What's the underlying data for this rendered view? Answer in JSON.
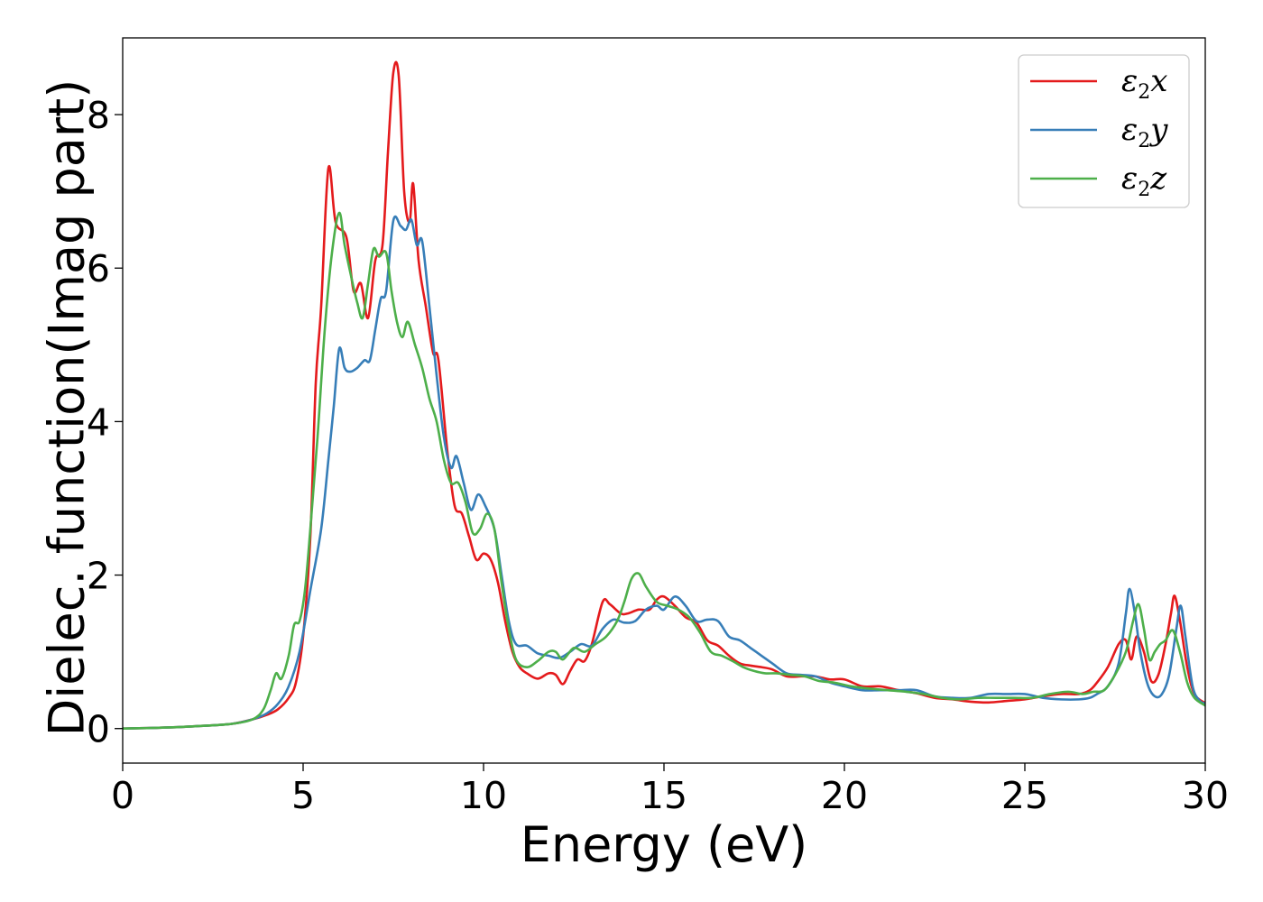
{
  "chart_data": {
    "type": "line",
    "title": "",
    "xlabel": "Energy (eV)",
    "ylabel": "Dielec. function(Imag part)",
    "xlim": [
      0,
      30
    ],
    "ylim": [
      -0.45,
      9.0
    ],
    "xticks": [
      0,
      5,
      10,
      15,
      20,
      25,
      30
    ],
    "yticks": [
      0,
      2,
      4,
      6,
      8
    ],
    "grid": false,
    "legend_position": "top-right",
    "series": [
      {
        "name": "ε2x",
        "symbol": "ε",
        "subscript": "2",
        "suffix": "x",
        "color": "#e41a1c",
        "points": [
          [
            0,
            0.0
          ],
          [
            1,
            0.01
          ],
          [
            2,
            0.03
          ],
          [
            3,
            0.06
          ],
          [
            3.6,
            0.12
          ],
          [
            4.0,
            0.18
          ],
          [
            4.3,
            0.25
          ],
          [
            4.6,
            0.4
          ],
          [
            4.8,
            0.6
          ],
          [
            5.0,
            1.2
          ],
          [
            5.2,
            2.5
          ],
          [
            5.35,
            4.5
          ],
          [
            5.5,
            5.5
          ],
          [
            5.7,
            7.3
          ],
          [
            5.9,
            6.6
          ],
          [
            6.2,
            6.4
          ],
          [
            6.4,
            5.7
          ],
          [
            6.6,
            5.8
          ],
          [
            6.8,
            5.35
          ],
          [
            7.0,
            6.1
          ],
          [
            7.2,
            6.3
          ],
          [
            7.35,
            7.5
          ],
          [
            7.5,
            8.55
          ],
          [
            7.65,
            8.5
          ],
          [
            7.8,
            7.0
          ],
          [
            7.95,
            6.6
          ],
          [
            8.05,
            7.1
          ],
          [
            8.2,
            6.1
          ],
          [
            8.4,
            5.5
          ],
          [
            8.6,
            4.9
          ],
          [
            8.75,
            4.8
          ],
          [
            9.0,
            3.6
          ],
          [
            9.2,
            2.9
          ],
          [
            9.4,
            2.8
          ],
          [
            9.6,
            2.5
          ],
          [
            9.8,
            2.2
          ],
          [
            10.0,
            2.28
          ],
          [
            10.2,
            2.2
          ],
          [
            10.4,
            1.9
          ],
          [
            10.6,
            1.4
          ],
          [
            10.8,
            1.0
          ],
          [
            11.0,
            0.8
          ],
          [
            11.2,
            0.72
          ],
          [
            11.5,
            0.65
          ],
          [
            11.8,
            0.72
          ],
          [
            12.0,
            0.7
          ],
          [
            12.2,
            0.58
          ],
          [
            12.4,
            0.75
          ],
          [
            12.6,
            0.9
          ],
          [
            12.8,
            0.88
          ],
          [
            13.0,
            1.1
          ],
          [
            13.3,
            1.65
          ],
          [
            13.5,
            1.62
          ],
          [
            13.8,
            1.5
          ],
          [
            14.0,
            1.5
          ],
          [
            14.3,
            1.55
          ],
          [
            14.6,
            1.55
          ],
          [
            14.8,
            1.68
          ],
          [
            15.0,
            1.72
          ],
          [
            15.3,
            1.6
          ],
          [
            15.6,
            1.45
          ],
          [
            15.9,
            1.38
          ],
          [
            16.2,
            1.15
          ],
          [
            16.5,
            1.08
          ],
          [
            16.8,
            0.95
          ],
          [
            17.1,
            0.85
          ],
          [
            17.4,
            0.82
          ],
          [
            17.7,
            0.8
          ],
          [
            18.0,
            0.77
          ],
          [
            18.4,
            0.68
          ],
          [
            18.8,
            0.68
          ],
          [
            19.2,
            0.68
          ],
          [
            19.6,
            0.64
          ],
          [
            20.0,
            0.64
          ],
          [
            20.5,
            0.55
          ],
          [
            21.0,
            0.55
          ],
          [
            21.5,
            0.5
          ],
          [
            22.0,
            0.46
          ],
          [
            22.5,
            0.4
          ],
          [
            23.0,
            0.38
          ],
          [
            23.5,
            0.35
          ],
          [
            24.0,
            0.34
          ],
          [
            24.5,
            0.36
          ],
          [
            25.0,
            0.38
          ],
          [
            25.5,
            0.42
          ],
          [
            26.0,
            0.45
          ],
          [
            26.5,
            0.45
          ],
          [
            26.8,
            0.5
          ],
          [
            27.0,
            0.6
          ],
          [
            27.3,
            0.8
          ],
          [
            27.6,
            1.1
          ],
          [
            27.8,
            1.15
          ],
          [
            27.95,
            0.9
          ],
          [
            28.1,
            1.2
          ],
          [
            28.3,
            1.0
          ],
          [
            28.5,
            0.62
          ],
          [
            28.7,
            0.7
          ],
          [
            28.9,
            1.1
          ],
          [
            29.05,
            1.5
          ],
          [
            29.15,
            1.73
          ],
          [
            29.3,
            1.4
          ],
          [
            29.5,
            0.8
          ],
          [
            29.7,
            0.45
          ],
          [
            30.0,
            0.33
          ]
        ]
      },
      {
        "name": "ε2y",
        "symbol": "ε",
        "subscript": "2",
        "suffix": "y",
        "color": "#377eb8",
        "points": [
          [
            0,
            0.0
          ],
          [
            1,
            0.01
          ],
          [
            2,
            0.03
          ],
          [
            3,
            0.06
          ],
          [
            3.6,
            0.12
          ],
          [
            4.0,
            0.2
          ],
          [
            4.3,
            0.32
          ],
          [
            4.6,
            0.55
          ],
          [
            4.9,
            1.0
          ],
          [
            5.2,
            1.8
          ],
          [
            5.5,
            2.6
          ],
          [
            5.7,
            3.5
          ],
          [
            5.85,
            4.2
          ],
          [
            6.0,
            4.95
          ],
          [
            6.15,
            4.7
          ],
          [
            6.3,
            4.65
          ],
          [
            6.5,
            4.7
          ],
          [
            6.7,
            4.8
          ],
          [
            6.85,
            4.8
          ],
          [
            7.0,
            5.2
          ],
          [
            7.15,
            5.6
          ],
          [
            7.3,
            5.7
          ],
          [
            7.5,
            6.62
          ],
          [
            7.7,
            6.55
          ],
          [
            7.85,
            6.5
          ],
          [
            8.0,
            6.63
          ],
          [
            8.15,
            6.3
          ],
          [
            8.3,
            6.35
          ],
          [
            8.5,
            5.5
          ],
          [
            8.7,
            4.6
          ],
          [
            8.9,
            3.8
          ],
          [
            9.1,
            3.4
          ],
          [
            9.25,
            3.55
          ],
          [
            9.45,
            3.2
          ],
          [
            9.65,
            2.85
          ],
          [
            9.85,
            3.05
          ],
          [
            10.05,
            2.9
          ],
          [
            10.3,
            2.6
          ],
          [
            10.5,
            2.0
          ],
          [
            10.7,
            1.4
          ],
          [
            10.9,
            1.1
          ],
          [
            11.2,
            1.08
          ],
          [
            11.5,
            0.98
          ],
          [
            11.8,
            0.95
          ],
          [
            12.1,
            0.92
          ],
          [
            12.4,
            1.0
          ],
          [
            12.7,
            1.1
          ],
          [
            13.0,
            1.08
          ],
          [
            13.3,
            1.3
          ],
          [
            13.6,
            1.42
          ],
          [
            13.9,
            1.38
          ],
          [
            14.2,
            1.4
          ],
          [
            14.5,
            1.55
          ],
          [
            14.8,
            1.6
          ],
          [
            15.0,
            1.55
          ],
          [
            15.3,
            1.72
          ],
          [
            15.6,
            1.6
          ],
          [
            15.9,
            1.4
          ],
          [
            16.2,
            1.42
          ],
          [
            16.5,
            1.4
          ],
          [
            16.8,
            1.2
          ],
          [
            17.1,
            1.15
          ],
          [
            17.4,
            1.05
          ],
          [
            17.7,
            0.95
          ],
          [
            18.0,
            0.85
          ],
          [
            18.4,
            0.72
          ],
          [
            18.8,
            0.7
          ],
          [
            19.2,
            0.68
          ],
          [
            19.6,
            0.6
          ],
          [
            20.0,
            0.55
          ],
          [
            20.5,
            0.5
          ],
          [
            21.0,
            0.5
          ],
          [
            21.5,
            0.5
          ],
          [
            22.0,
            0.5
          ],
          [
            22.5,
            0.42
          ],
          [
            23.0,
            0.4
          ],
          [
            23.5,
            0.4
          ],
          [
            24.0,
            0.45
          ],
          [
            24.5,
            0.45
          ],
          [
            25.0,
            0.45
          ],
          [
            25.5,
            0.4
          ],
          [
            26.0,
            0.38
          ],
          [
            26.5,
            0.38
          ],
          [
            26.8,
            0.4
          ],
          [
            27.0,
            0.45
          ],
          [
            27.3,
            0.55
          ],
          [
            27.6,
            0.85
          ],
          [
            27.8,
            1.5
          ],
          [
            27.9,
            1.82
          ],
          [
            28.05,
            1.5
          ],
          [
            28.2,
            1.0
          ],
          [
            28.4,
            0.58
          ],
          [
            28.6,
            0.42
          ],
          [
            28.8,
            0.45
          ],
          [
            29.0,
            0.7
          ],
          [
            29.2,
            1.3
          ],
          [
            29.32,
            1.6
          ],
          [
            29.45,
            1.2
          ],
          [
            29.65,
            0.55
          ],
          [
            29.85,
            0.36
          ],
          [
            30.0,
            0.33
          ]
        ]
      },
      {
        "name": "ε2z",
        "symbol": "ε",
        "subscript": "2",
        "suffix": "z",
        "color": "#4daf4a",
        "points": [
          [
            0,
            0.0
          ],
          [
            1,
            0.01
          ],
          [
            2,
            0.03
          ],
          [
            3,
            0.06
          ],
          [
            3.6,
            0.12
          ],
          [
            3.9,
            0.25
          ],
          [
            4.1,
            0.5
          ],
          [
            4.25,
            0.72
          ],
          [
            4.4,
            0.65
          ],
          [
            4.6,
            0.95
          ],
          [
            4.75,
            1.35
          ],
          [
            4.9,
            1.4
          ],
          [
            5.05,
            1.8
          ],
          [
            5.2,
            2.6
          ],
          [
            5.4,
            3.8
          ],
          [
            5.6,
            5.2
          ],
          [
            5.8,
            6.2
          ],
          [
            6.0,
            6.72
          ],
          [
            6.15,
            6.3
          ],
          [
            6.35,
            5.85
          ],
          [
            6.5,
            5.55
          ],
          [
            6.65,
            5.35
          ],
          [
            6.8,
            5.8
          ],
          [
            6.95,
            6.25
          ],
          [
            7.1,
            6.15
          ],
          [
            7.3,
            6.2
          ],
          [
            7.45,
            5.7
          ],
          [
            7.6,
            5.3
          ],
          [
            7.75,
            5.1
          ],
          [
            7.9,
            5.3
          ],
          [
            8.1,
            5.0
          ],
          [
            8.3,
            4.7
          ],
          [
            8.5,
            4.3
          ],
          [
            8.7,
            4.0
          ],
          [
            8.9,
            3.5
          ],
          [
            9.1,
            3.2
          ],
          [
            9.3,
            3.2
          ],
          [
            9.5,
            2.95
          ],
          [
            9.7,
            2.55
          ],
          [
            9.9,
            2.6
          ],
          [
            10.1,
            2.8
          ],
          [
            10.3,
            2.6
          ],
          [
            10.5,
            1.9
          ],
          [
            10.7,
            1.3
          ],
          [
            10.9,
            0.9
          ],
          [
            11.2,
            0.8
          ],
          [
            11.5,
            0.88
          ],
          [
            11.8,
            1.0
          ],
          [
            12.0,
            1.0
          ],
          [
            12.2,
            0.9
          ],
          [
            12.5,
            1.05
          ],
          [
            12.8,
            1.0
          ],
          [
            13.1,
            1.1
          ],
          [
            13.4,
            1.2
          ],
          [
            13.7,
            1.4
          ],
          [
            13.9,
            1.65
          ],
          [
            14.1,
            1.95
          ],
          [
            14.3,
            2.02
          ],
          [
            14.5,
            1.85
          ],
          [
            14.8,
            1.65
          ],
          [
            15.1,
            1.6
          ],
          [
            15.4,
            1.55
          ],
          [
            15.7,
            1.45
          ],
          [
            16.0,
            1.25
          ],
          [
            16.3,
            1.0
          ],
          [
            16.6,
            0.95
          ],
          [
            16.9,
            0.88
          ],
          [
            17.2,
            0.8
          ],
          [
            17.5,
            0.75
          ],
          [
            17.8,
            0.72
          ],
          [
            18.1,
            0.72
          ],
          [
            18.5,
            0.7
          ],
          [
            18.9,
            0.68
          ],
          [
            19.3,
            0.62
          ],
          [
            19.7,
            0.6
          ],
          [
            20.2,
            0.55
          ],
          [
            20.7,
            0.52
          ],
          [
            21.2,
            0.5
          ],
          [
            21.7,
            0.48
          ],
          [
            22.2,
            0.45
          ],
          [
            22.7,
            0.4
          ],
          [
            23.2,
            0.38
          ],
          [
            23.7,
            0.4
          ],
          [
            24.2,
            0.4
          ],
          [
            24.7,
            0.4
          ],
          [
            25.2,
            0.4
          ],
          [
            25.7,
            0.45
          ],
          [
            26.2,
            0.48
          ],
          [
            26.6,
            0.45
          ],
          [
            26.9,
            0.48
          ],
          [
            27.2,
            0.5
          ],
          [
            27.5,
            0.7
          ],
          [
            27.8,
            1.0
          ],
          [
            28.0,
            1.4
          ],
          [
            28.15,
            1.62
          ],
          [
            28.3,
            1.3
          ],
          [
            28.45,
            0.9
          ],
          [
            28.6,
            1.0
          ],
          [
            28.75,
            1.1
          ],
          [
            28.9,
            1.15
          ],
          [
            29.1,
            1.28
          ],
          [
            29.3,
            1.0
          ],
          [
            29.5,
            0.6
          ],
          [
            29.7,
            0.4
          ],
          [
            30.0,
            0.3
          ]
        ]
      }
    ]
  }
}
